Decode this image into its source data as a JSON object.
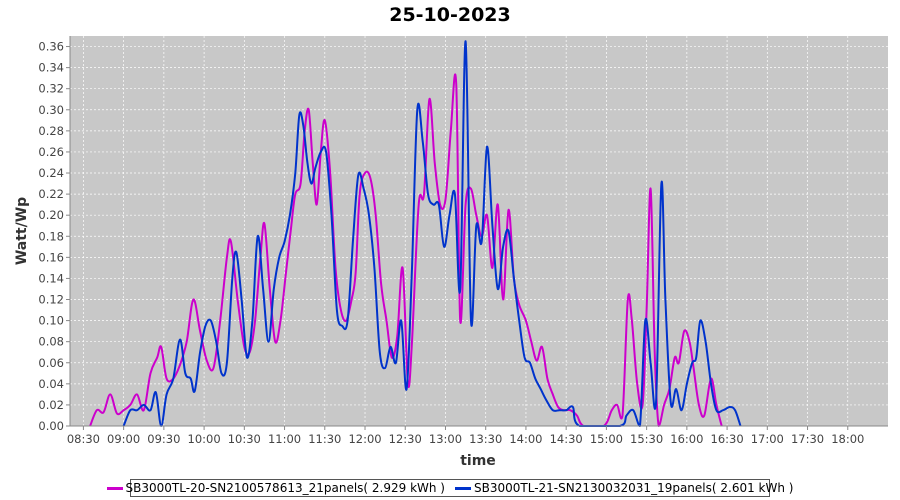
{
  "chart_data": {
    "type": "line",
    "title": "25-10-2023",
    "xlabel": "time",
    "ylabel": "Watt/Wp",
    "xlim": [
      "08:20",
      "18:30"
    ],
    "ylim": [
      0,
      0.37
    ],
    "x_ticks": [
      "08:30",
      "09:00",
      "09:30",
      "10:00",
      "10:30",
      "11:00",
      "11:30",
      "12:00",
      "12:30",
      "13:00",
      "13:30",
      "14:00",
      "14:30",
      "15:00",
      "15:30",
      "16:00",
      "16:30",
      "17:00",
      "17:30",
      "18:00"
    ],
    "y_ticks": [
      "0.00",
      "0.02",
      "0.04",
      "0.06",
      "0.08",
      "0.10",
      "0.12",
      "0.14",
      "0.16",
      "0.18",
      "0.20",
      "0.22",
      "0.24",
      "0.26",
      "0.28",
      "0.30",
      "0.32",
      "0.34",
      "0.36"
    ],
    "grid": true,
    "legend_position": "bottom",
    "background_color": "#c8c8c8",
    "series": [
      {
        "name": "SB3000TL-20-SN2100578613_21panels( 2.929 kWh )",
        "color": "#cc00cc",
        "points": [
          [
            "08:35",
            0.0
          ],
          [
            "08:40",
            0.015
          ],
          [
            "08:45",
            0.013
          ],
          [
            "08:50",
            0.03
          ],
          [
            "08:55",
            0.012
          ],
          [
            "09:00",
            0.015
          ],
          [
            "09:05",
            0.02
          ],
          [
            "09:10",
            0.03
          ],
          [
            "09:15",
            0.015
          ],
          [
            "09:20",
            0.05
          ],
          [
            "09:25",
            0.065
          ],
          [
            "09:28",
            0.075
          ],
          [
            "09:32",
            0.045
          ],
          [
            "09:37",
            0.045
          ],
          [
            "09:42",
            0.058
          ],
          [
            "09:47",
            0.08
          ],
          [
            "09:52",
            0.12
          ],
          [
            "09:57",
            0.09
          ],
          [
            "10:02",
            0.062
          ],
          [
            "10:07",
            0.055
          ],
          [
            "10:12",
            0.1
          ],
          [
            "10:17",
            0.16
          ],
          [
            "10:20",
            0.175
          ],
          [
            "10:25",
            0.12
          ],
          [
            "10:30",
            0.075
          ],
          [
            "10:34",
            0.07
          ],
          [
            "10:38",
            0.1
          ],
          [
            "10:42",
            0.16
          ],
          [
            "10:45",
            0.192
          ],
          [
            "10:49",
            0.13
          ],
          [
            "10:53",
            0.08
          ],
          [
            "10:57",
            0.1
          ],
          [
            "11:01",
            0.145
          ],
          [
            "11:05",
            0.19
          ],
          [
            "11:08",
            0.22
          ],
          [
            "11:12",
            0.23
          ],
          [
            "11:15",
            0.28
          ],
          [
            "11:18",
            0.3
          ],
          [
            "11:21",
            0.25
          ],
          [
            "11:24",
            0.21
          ],
          [
            "11:27",
            0.26
          ],
          [
            "11:30",
            0.29
          ],
          [
            "11:34",
            0.24
          ],
          [
            "11:38",
            0.15
          ],
          [
            "11:42",
            0.11
          ],
          [
            "11:46",
            0.1
          ],
          [
            "11:50",
            0.12
          ],
          [
            "11:53",
            0.145
          ],
          [
            "11:56",
            0.22
          ],
          [
            "12:00",
            0.24
          ],
          [
            "12:04",
            0.235
          ],
          [
            "12:08",
            0.2
          ],
          [
            "12:12",
            0.135
          ],
          [
            "12:16",
            0.1
          ],
          [
            "12:20",
            0.065
          ],
          [
            "12:24",
            0.085
          ],
          [
            "12:28",
            0.15
          ],
          [
            "12:32",
            0.04
          ],
          [
            "12:35",
            0.08
          ],
          [
            "12:40",
            0.21
          ],
          [
            "12:44",
            0.22
          ],
          [
            "12:48",
            0.31
          ],
          [
            "12:52",
            0.25
          ],
          [
            "12:56",
            0.21
          ],
          [
            "13:00",
            0.215
          ],
          [
            "13:04",
            0.28
          ],
          [
            "13:08",
            0.325
          ],
          [
            "13:11",
            0.1
          ],
          [
            "13:15",
            0.21
          ],
          [
            "13:19",
            0.225
          ],
          [
            "13:23",
            0.2
          ],
          [
            "13:27",
            0.18
          ],
          [
            "13:31",
            0.2
          ],
          [
            "13:35",
            0.15
          ],
          [
            "13:39",
            0.21
          ],
          [
            "13:43",
            0.12
          ],
          [
            "13:47",
            0.205
          ],
          [
            "13:51",
            0.14
          ],
          [
            "13:55",
            0.115
          ],
          [
            "14:00",
            0.1
          ],
          [
            "14:04",
            0.08
          ],
          [
            "14:08",
            0.062
          ],
          [
            "14:12",
            0.075
          ],
          [
            "14:16",
            0.045
          ],
          [
            "14:20",
            0.03
          ],
          [
            "14:24",
            0.018
          ],
          [
            "14:28",
            0.015
          ],
          [
            "14:33",
            0.015
          ],
          [
            "14:38",
            0.01
          ],
          [
            "14:43",
            0.0
          ],
          [
            "14:58",
            0.0
          ],
          [
            "15:04",
            0.015
          ],
          [
            "15:08",
            0.02
          ],
          [
            "15:12",
            0.01
          ],
          [
            "15:16",
            0.12
          ],
          [
            "15:19",
            0.1
          ],
          [
            "15:23",
            0.04
          ],
          [
            "15:27",
            0.02
          ],
          [
            "15:30",
            0.11
          ],
          [
            "15:33",
            0.225
          ],
          [
            "15:36",
            0.07
          ],
          [
            "15:39",
            0.0
          ],
          [
            "15:43",
            0.02
          ],
          [
            "15:47",
            0.035
          ],
          [
            "15:51",
            0.065
          ],
          [
            "15:54",
            0.06
          ],
          [
            "15:58",
            0.09
          ],
          [
            "16:02",
            0.08
          ],
          [
            "16:05",
            0.055
          ],
          [
            "16:09",
            0.02
          ],
          [
            "16:13",
            0.01
          ],
          [
            "16:18",
            0.045
          ],
          [
            "16:22",
            0.02
          ],
          [
            "16:26",
            0.0
          ]
        ]
      },
      {
        "name": "SB3000TL-21-SN2130032031_19panels( 2.601 kWh )",
        "color": "#0033cc",
        "points": [
          [
            "09:00",
            0.0
          ],
          [
            "09:05",
            0.015
          ],
          [
            "09:10",
            0.015
          ],
          [
            "09:15",
            0.02
          ],
          [
            "09:20",
            0.015
          ],
          [
            "09:24",
            0.032
          ],
          [
            "09:28",
            0.0
          ],
          [
            "09:32",
            0.03
          ],
          [
            "09:37",
            0.045
          ],
          [
            "09:42",
            0.082
          ],
          [
            "09:46",
            0.05
          ],
          [
            "09:50",
            0.045
          ],
          [
            "09:53",
            0.033
          ],
          [
            "09:57",
            0.07
          ],
          [
            "10:01",
            0.095
          ],
          [
            "10:05",
            0.1
          ],
          [
            "10:09",
            0.08
          ],
          [
            "10:13",
            0.05
          ],
          [
            "10:17",
            0.06
          ],
          [
            "10:21",
            0.14
          ],
          [
            "10:24",
            0.165
          ],
          [
            "10:28",
            0.12
          ],
          [
            "10:32",
            0.065
          ],
          [
            "10:36",
            0.1
          ],
          [
            "10:40",
            0.18
          ],
          [
            "10:44",
            0.13
          ],
          [
            "10:48",
            0.08
          ],
          [
            "10:52",
            0.13
          ],
          [
            "10:56",
            0.16
          ],
          [
            "11:00",
            0.175
          ],
          [
            "11:04",
            0.2
          ],
          [
            "11:08",
            0.24
          ],
          [
            "11:11",
            0.295
          ],
          [
            "11:14",
            0.285
          ],
          [
            "11:17",
            0.25
          ],
          [
            "11:20",
            0.23
          ],
          [
            "11:23",
            0.245
          ],
          [
            "11:27",
            0.26
          ],
          [
            "11:31",
            0.26
          ],
          [
            "11:35",
            0.2
          ],
          [
            "11:39",
            0.11
          ],
          [
            "11:43",
            0.095
          ],
          [
            "11:47",
            0.1
          ],
          [
            "11:51",
            0.175
          ],
          [
            "11:55",
            0.238
          ],
          [
            "11:59",
            0.225
          ],
          [
            "12:03",
            0.2
          ],
          [
            "12:07",
            0.15
          ],
          [
            "12:11",
            0.07
          ],
          [
            "12:15",
            0.055
          ],
          [
            "12:19",
            0.075
          ],
          [
            "12:23",
            0.06
          ],
          [
            "12:27",
            0.1
          ],
          [
            "12:31",
            0.035
          ],
          [
            "12:35",
            0.15
          ],
          [
            "12:39",
            0.3
          ],
          [
            "12:43",
            0.27
          ],
          [
            "12:47",
            0.22
          ],
          [
            "12:51",
            0.21
          ],
          [
            "12:55",
            0.21
          ],
          [
            "12:59",
            0.17
          ],
          [
            "13:03",
            0.2
          ],
          [
            "13:07",
            0.22
          ],
          [
            "13:11",
            0.13
          ],
          [
            "13:15",
            0.365
          ],
          [
            "13:19",
            0.1
          ],
          [
            "13:23",
            0.19
          ],
          [
            "13:27",
            0.175
          ],
          [
            "13:31",
            0.265
          ],
          [
            "13:35",
            0.19
          ],
          [
            "13:39",
            0.13
          ],
          [
            "13:43",
            0.17
          ],
          [
            "13:47",
            0.185
          ],
          [
            "13:51",
            0.14
          ],
          [
            "13:55",
            0.1
          ],
          [
            "13:59",
            0.065
          ],
          [
            "14:03",
            0.06
          ],
          [
            "14:07",
            0.045
          ],
          [
            "14:11",
            0.035
          ],
          [
            "14:15",
            0.025
          ],
          [
            "14:20",
            0.015
          ],
          [
            "14:25",
            0.015
          ],
          [
            "14:30",
            0.015
          ],
          [
            "14:35",
            0.018
          ],
          [
            "14:40",
            0.0
          ],
          [
            "15:10",
            0.0
          ],
          [
            "15:15",
            0.01
          ],
          [
            "15:20",
            0.015
          ],
          [
            "15:25",
            0.0
          ],
          [
            "15:29",
            0.1
          ],
          [
            "15:33",
            0.06
          ],
          [
            "15:37",
            0.022
          ],
          [
            "15:41",
            0.23
          ],
          [
            "15:44",
            0.12
          ],
          [
            "15:48",
            0.022
          ],
          [
            "15:52",
            0.035
          ],
          [
            "15:56",
            0.015
          ],
          [
            "16:00",
            0.04
          ],
          [
            "16:04",
            0.06
          ],
          [
            "16:07",
            0.065
          ],
          [
            "16:10",
            0.1
          ],
          [
            "16:14",
            0.08
          ],
          [
            "16:18",
            0.04
          ],
          [
            "16:22",
            0.015
          ],
          [
            "16:27",
            0.015
          ],
          [
            "16:32",
            0.018
          ],
          [
            "16:36",
            0.015
          ],
          [
            "16:40",
            0.0
          ]
        ]
      }
    ]
  }
}
